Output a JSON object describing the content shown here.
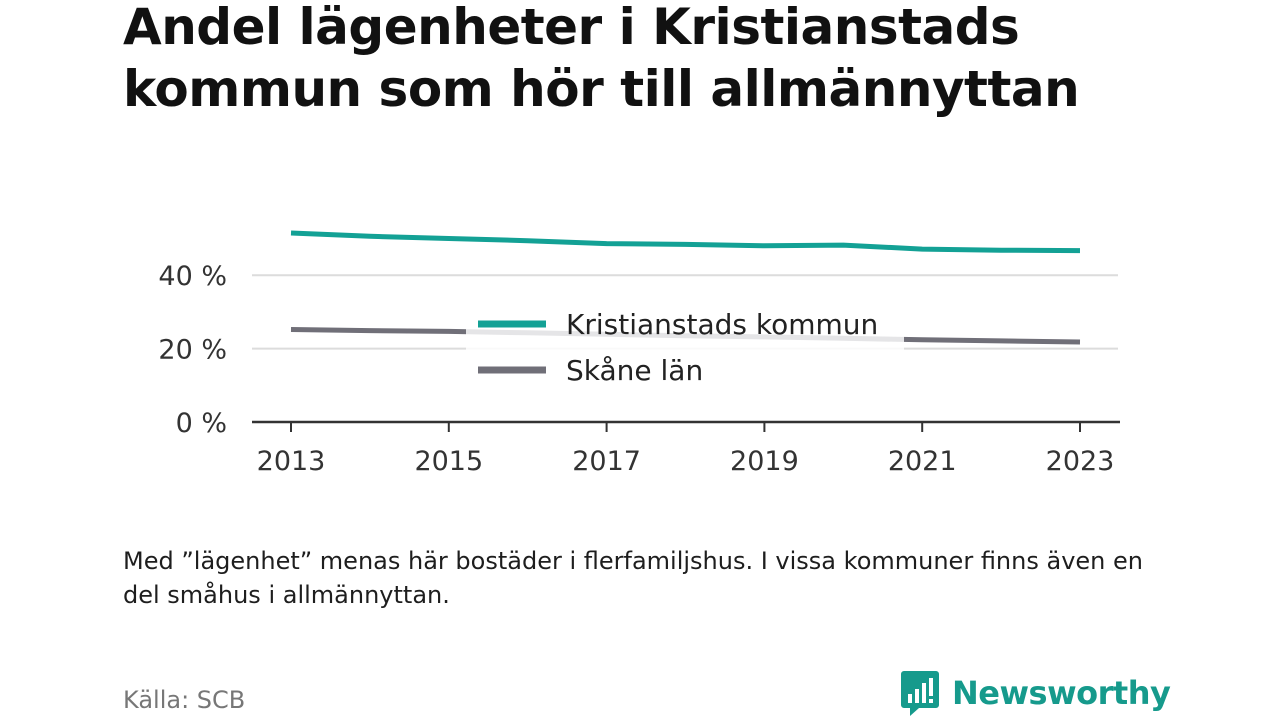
{
  "title": "Andel lägenheter i Kristianstads kommun som hör till allmännyttan",
  "note": "Med ”lägenhet” menas här bostäder i flerfamiljshus. I vissa kommuner finns även en del småhus i allmännyttan.",
  "source": "Källa: SCB",
  "brand": {
    "name": "Newsworthy",
    "icon": "newsworthy-logo-icon",
    "color": "#169a8c"
  },
  "chart_data": {
    "type": "line",
    "title": "Andel lägenheter i Kristianstads kommun som hör till allmännyttan",
    "xlabel": "",
    "ylabel": "",
    "x": [
      2013,
      2014,
      2015,
      2016,
      2017,
      2018,
      2019,
      2020,
      2021,
      2022,
      2023
    ],
    "x_ticks": [
      "2013",
      "2015",
      "2017",
      "2019",
      "2021",
      "2023"
    ],
    "y_ticks": [
      "0 %",
      "20 %",
      "40 %"
    ],
    "ylim": [
      0,
      55
    ],
    "grid": true,
    "legend_position": "center",
    "series": [
      {
        "name": "Kristianstads kommun",
        "color": "#13a195",
        "values": [
          51.5,
          50.6,
          50.0,
          49.4,
          48.6,
          48.4,
          48.0,
          48.2,
          47.1,
          46.8,
          46.7
        ]
      },
      {
        "name": "Skåne län",
        "color": "#706f78",
        "values": [
          25.2,
          24.9,
          24.7,
          24.3,
          23.9,
          23.5,
          23.2,
          22.8,
          22.4,
          22.1,
          21.8
        ]
      }
    ]
  }
}
